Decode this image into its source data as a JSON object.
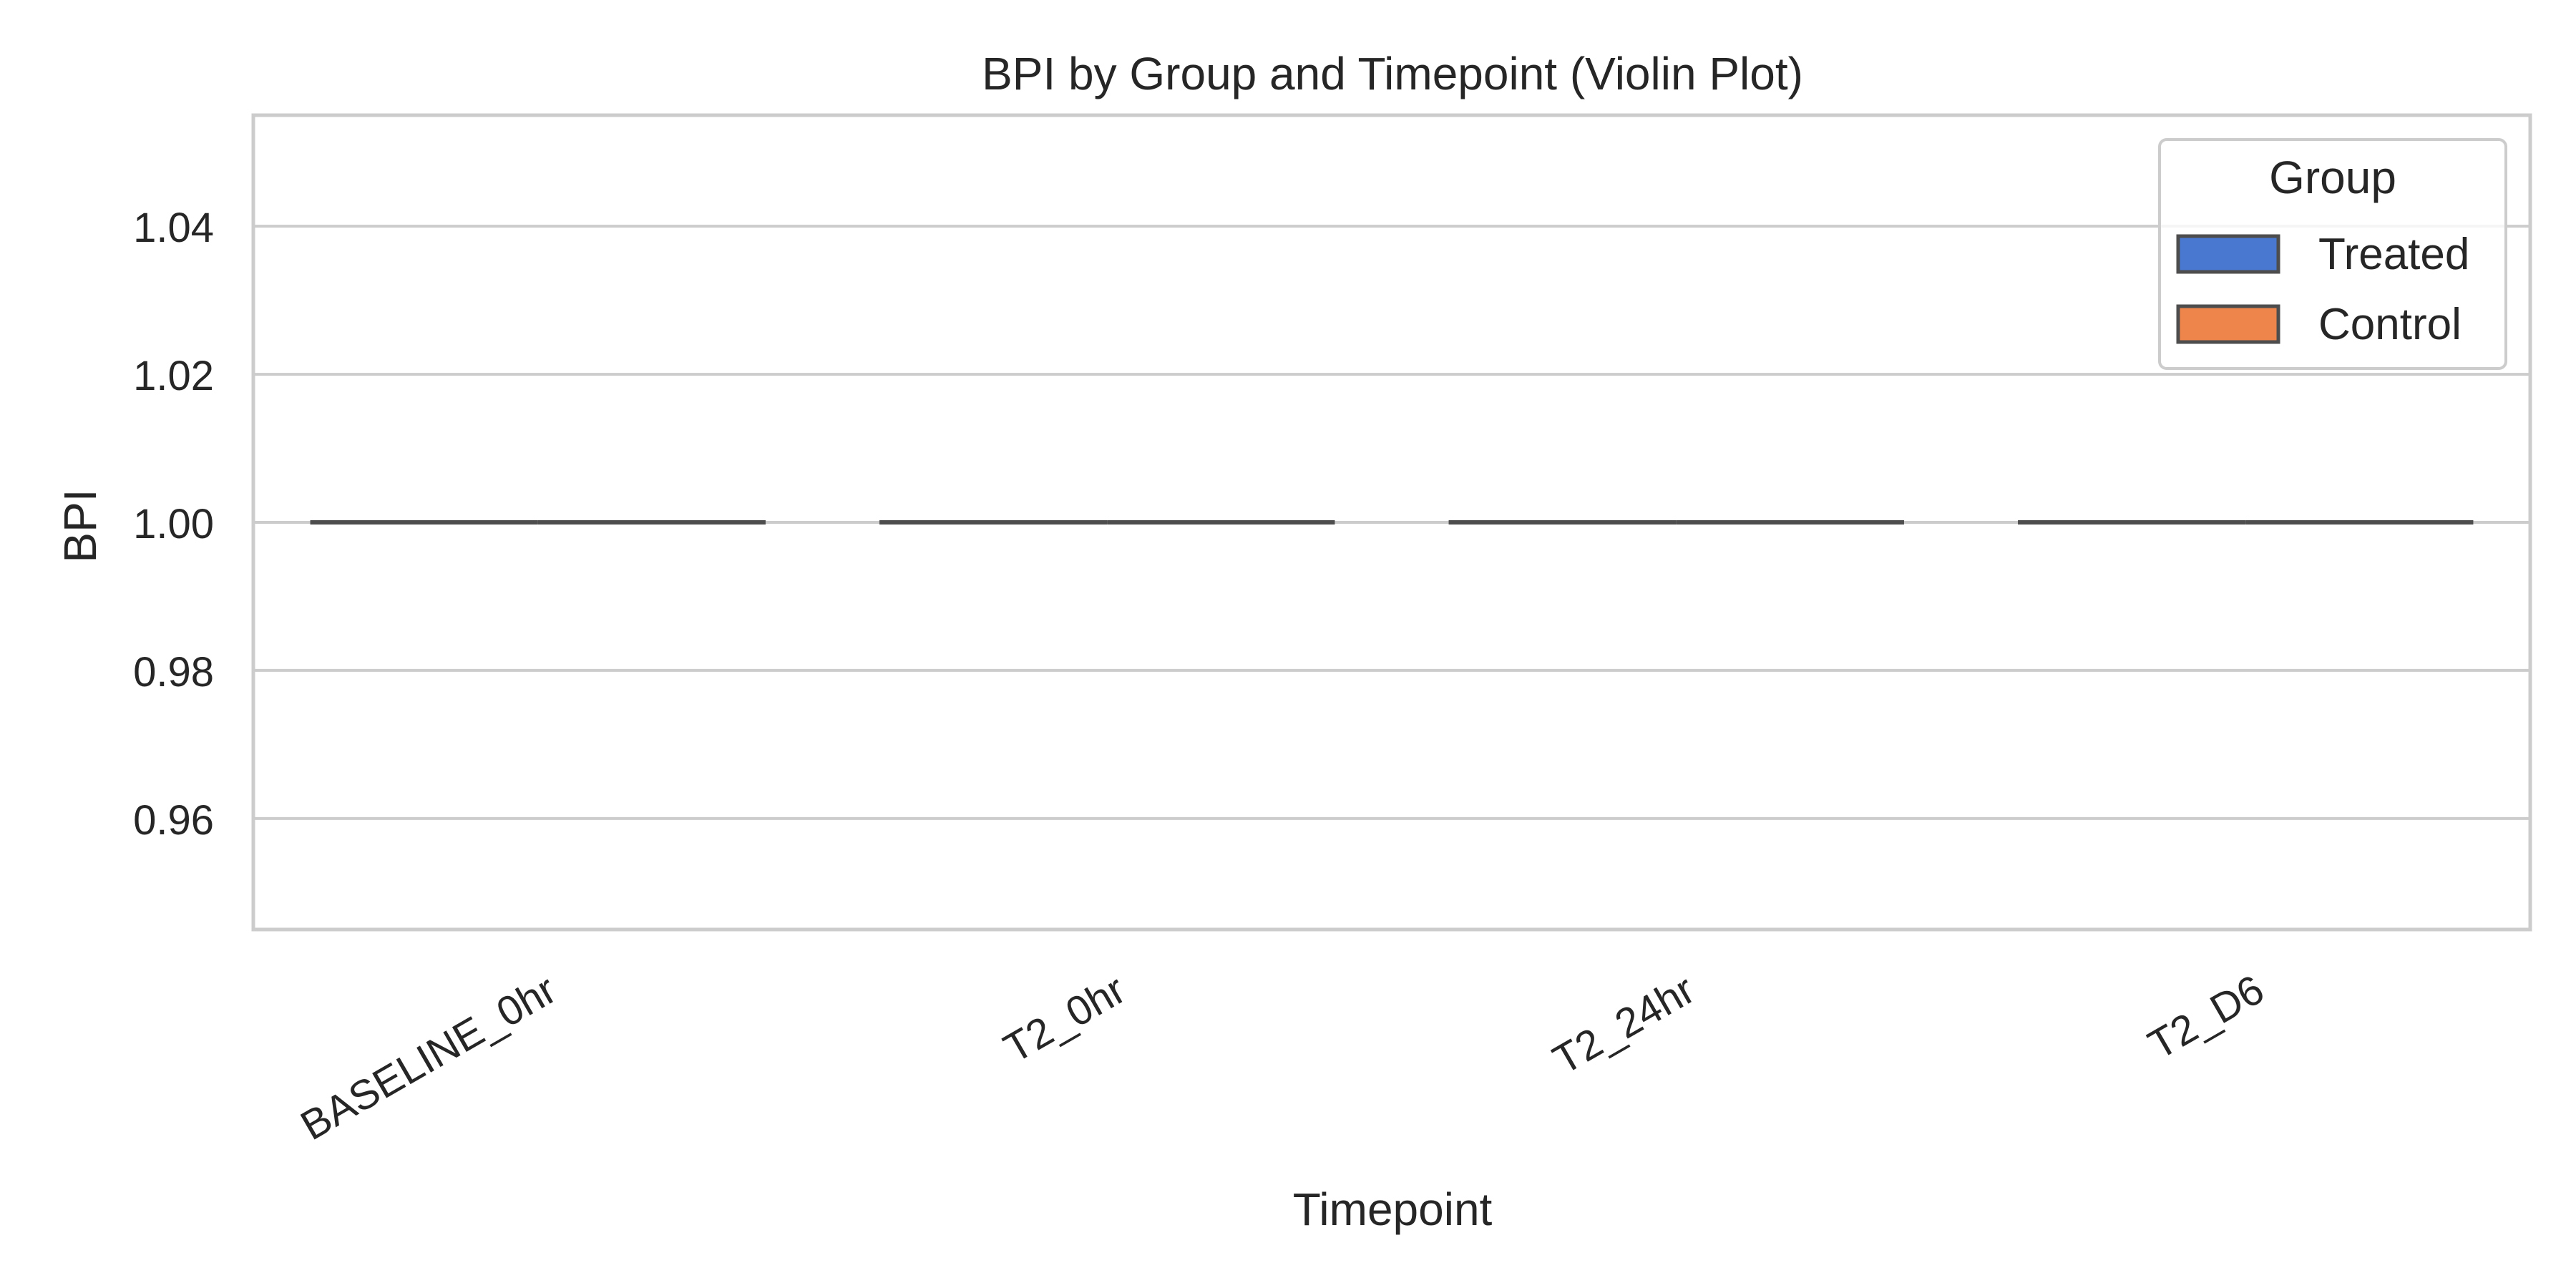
{
  "chart_data": {
    "type": "violin",
    "title": "BPI by Group and Timepoint (Violin Plot)",
    "xlabel": "Timepoint",
    "ylabel": "BPI",
    "categories": [
      "BASELINE_0hr",
      "T2_0hr",
      "T2_24hr",
      "T2_D6"
    ],
    "ylim": [
      0.945,
      1.055
    ],
    "yticks": [
      0.96,
      0.98,
      1.0,
      1.02,
      1.04
    ],
    "ytick_labels": [
      "0.96",
      "0.98",
      "1.00",
      "1.02",
      "1.04"
    ],
    "grid": "y",
    "legend": {
      "title": "Group",
      "placement": "upper right"
    },
    "series": [
      {
        "name": "Treated",
        "color": "#4878d0",
        "values": [
          1.0,
          1.0,
          1.0,
          1.0
        ]
      },
      {
        "name": "Control",
        "color": "#ee854a",
        "values": [
          1.0,
          1.0,
          1.0,
          1.0
        ]
      }
    ],
    "colors": {
      "axes_edge": "#cccccc",
      "grid": "#cccccc",
      "violin_line": "#4d4d4d",
      "text": "#262626"
    }
  }
}
